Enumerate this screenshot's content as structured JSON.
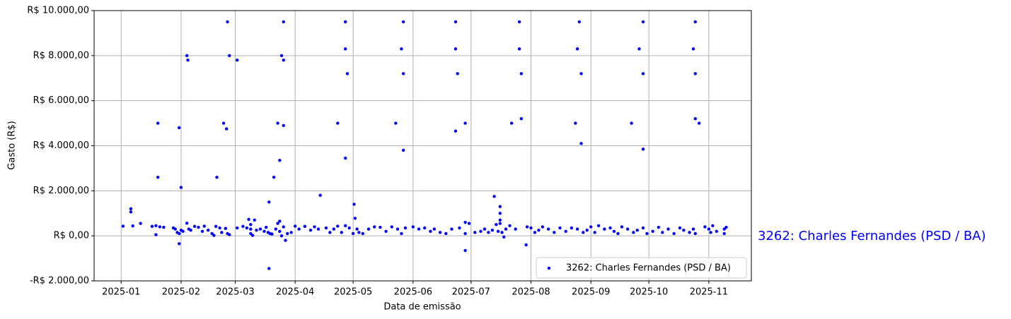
{
  "chart_data": {
    "type": "scatter",
    "xlabel": "Data de emissão",
    "ylabel": "Gasto (R$)",
    "annotation": "3262: Charles Fernandes (PSD / BA)",
    "grid": true,
    "legend": "lower right",
    "xlim": [
      -14,
      326
    ],
    "xticks": [
      {
        "value": 0,
        "label": "2025-01"
      },
      {
        "value": 31,
        "label": "2025-02"
      },
      {
        "value": 59,
        "label": "2025-03"
      },
      {
        "value": 90,
        "label": "2025-04"
      },
      {
        "value": 120,
        "label": "2025-05"
      },
      {
        "value": 151,
        "label": "2025-06"
      },
      {
        "value": 181,
        "label": "2025-07"
      },
      {
        "value": 212,
        "label": "2025-08"
      },
      {
        "value": 243,
        "label": "2025-09"
      },
      {
        "value": 273,
        "label": "2025-10"
      },
      {
        "value": 304,
        "label": "2025-11"
      }
    ],
    "ylim": [
      -2000,
      10000
    ],
    "yticks": [
      {
        "value": -2000,
        "label": "-R$ 2.000,00"
      },
      {
        "value": 0,
        "label": "R$ 0,00"
      },
      {
        "value": 2000,
        "label": "R$ 2.000,00"
      },
      {
        "value": 4000,
        "label": "R$ 4.000,00"
      },
      {
        "value": 6000,
        "label": "R$ 6.000,00"
      },
      {
        "value": 8000,
        "label": "R$ 8.000,00"
      },
      {
        "value": 10000,
        "label": "R$ 10.000,00"
      }
    ],
    "series": [
      {
        "name": "3262: Charles Fernandes (PSD / BA)",
        "color": "#0000ff",
        "x": [
          55,
          84,
          116,
          146,
          173,
          206,
          237,
          270,
          297,
          34,
          56,
          83,
          116,
          145,
          173,
          206,
          236,
          268,
          296,
          34.5,
          60,
          84,
          117,
          146,
          174,
          207,
          238,
          270,
          297,
          19,
          53,
          81,
          112,
          142,
          178,
          202,
          235,
          264,
          297,
          299,
          207,
          30,
          54.5,
          84,
          173,
          116,
          146,
          238,
          270,
          82,
          79,
          49.5,
          19,
          31,
          103,
          120.5,
          76.5,
          193,
          196,
          196,
          76.5,
          178,
          209.5,
          30,
          1,
          5,
          5,
          6,
          10,
          16,
          18,
          18,
          20,
          22,
          27,
          28,
          29,
          30,
          31,
          32,
          34,
          35,
          36,
          38,
          40,
          42,
          43,
          45,
          47,
          48,
          49,
          51,
          52,
          54,
          55,
          56,
          60,
          63,
          65,
          66,
          67,
          67,
          67,
          68,
          69,
          70,
          72,
          74,
          75,
          76,
          77,
          78,
          80,
          81,
          82,
          82,
          83,
          84,
          85,
          86,
          88,
          90,
          92,
          95,
          98,
          100,
          102,
          106,
          108,
          110,
          112,
          114,
          116,
          118,
          120,
          121,
          122,
          123,
          125,
          128,
          131,
          134,
          137,
          140,
          143,
          145,
          147,
          151,
          154,
          157,
          160,
          162,
          165,
          168,
          171,
          175,
          178,
          178,
          180,
          183,
          186,
          188,
          190,
          192,
          194,
          195,
          196,
          196,
          197,
          198,
          199,
          201,
          204,
          210,
          212,
          214,
          216,
          218,
          221,
          224,
          227,
          230,
          233,
          236,
          239,
          241,
          243,
          245,
          247,
          250,
          253,
          255,
          257,
          259,
          262,
          265,
          267,
          270,
          272,
          275,
          278,
          280,
          283,
          286,
          289,
          291,
          294,
          296,
          297,
          302,
          304,
          305,
          306,
          308,
          312,
          312,
          313
        ],
        "values": [
          9500,
          9500,
          9500,
          9500,
          9500,
          9500,
          9500,
          9500,
          9500,
          8000,
          8000,
          8000,
          8300,
          8300,
          8300,
          8300,
          8300,
          8300,
          8300,
          7800,
          7800,
          7800,
          7200,
          7200,
          7200,
          7200,
          7200,
          7200,
          7200,
          5000,
          5000,
          5000,
          5000,
          5000,
          5000,
          5000,
          5000,
          5000,
          5200,
          5000,
          5200,
          4800,
          4750,
          4900,
          4650,
          3450,
          3800,
          4100,
          3850,
          3350,
          2600,
          2600,
          2600,
          2150,
          1800,
          1400,
          1500,
          1750,
          1300,
          1000,
          -1450,
          -650,
          -400,
          -350,
          430,
          1200,
          1060,
          440,
          550,
          420,
          50,
          450,
          400,
          380,
          350,
          300,
          150,
          100,
          250,
          200,
          560,
          300,
          250,
          420,
          380,
          200,
          430,
          250,
          100,
          20,
          420,
          350,
          150,
          330,
          100,
          50,
          350,
          420,
          350,
          730,
          500,
          300,
          100,
          20,
          700,
          250,
          300,
          200,
          380,
          150,
          100,
          80,
          300,
          550,
          650,
          200,
          0,
          400,
          -200,
          100,
          150,
          430,
          300,
          420,
          250,
          400,
          300,
          350,
          150,
          300,
          430,
          150,
          450,
          350,
          100,
          780,
          300,
          150,
          100,
          300,
          400,
          380,
          200,
          400,
          300,
          100,
          350,
          400,
          300,
          350,
          200,
          300,
          150,
          100,
          300,
          350,
          600,
          100,
          550,
          150,
          200,
          300,
          150,
          250,
          500,
          200,
          700,
          550,
          150,
          -50,
          300,
          450,
          300,
          400,
          350,
          150,
          250,
          400,
          300,
          150,
          350,
          200,
          350,
          300,
          150,
          250,
          400,
          150,
          450,
          300,
          350,
          200,
          100,
          400,
          300,
          150,
          250,
          350,
          100,
          200,
          380,
          150,
          300,
          100,
          350,
          250,
          150,
          300,
          100,
          400,
          300,
          150,
          450,
          200,
          300,
          100,
          380
        ]
      }
    ]
  }
}
